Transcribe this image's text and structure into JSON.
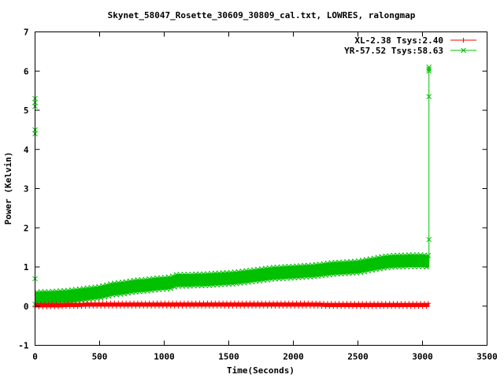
{
  "chart_data": {
    "type": "line",
    "title": "Skynet_58047_Rosette_30609_30809_cal.txt, LOWRES, ralongmap",
    "xlabel": "Time(Seconds)",
    "ylabel": "Power (Kelvin)",
    "xlim": [
      0,
      3500
    ],
    "ylim": [
      -1,
      7
    ],
    "xticks": [
      "0",
      "500",
      "1000",
      "1500",
      "2000",
      "2500",
      "3000",
      "3500"
    ],
    "yticks": [
      "-1",
      "0",
      "1",
      "2",
      "3",
      "4",
      "5",
      "6",
      "7"
    ],
    "legend_position": "top-right",
    "x": [
      0,
      50,
      100,
      150,
      200,
      250,
      300,
      350,
      400,
      450,
      500,
      550,
      600,
      650,
      700,
      750,
      800,
      850,
      900,
      950,
      1000,
      1050,
      1100,
      1150,
      1200,
      1250,
      1300,
      1350,
      1400,
      1450,
      1500,
      1550,
      1600,
      1650,
      1700,
      1750,
      1800,
      1850,
      1900,
      1950,
      2000,
      2050,
      2100,
      2150,
      2200,
      2250,
      2300,
      2350,
      2400,
      2450,
      2500,
      2550,
      2600,
      2650,
      2700,
      2750,
      2800,
      2850,
      2900,
      2950,
      3000,
      3050
    ],
    "series": [
      {
        "name": "XL-2.38 Tsys:2.40",
        "color": "#ff0000",
        "marker": "plus",
        "values": [
          0.02,
          0.02,
          0.02,
          0.02,
          0.02,
          0.03,
          0.03,
          0.03,
          0.04,
          0.04,
          0.04,
          0.04,
          0.04,
          0.04,
          0.04,
          0.04,
          0.04,
          0.04,
          0.04,
          0.04,
          0.04,
          0.04,
          0.04,
          0.04,
          0.04,
          0.04,
          0.04,
          0.04,
          0.04,
          0.04,
          0.04,
          0.04,
          0.04,
          0.04,
          0.04,
          0.04,
          0.04,
          0.04,
          0.04,
          0.04,
          0.04,
          0.04,
          0.04,
          0.04,
          0.04,
          0.03,
          0.03,
          0.03,
          0.03,
          0.03,
          0.03,
          0.03,
          0.03,
          0.03,
          0.03,
          0.03,
          0.03,
          0.03,
          0.03,
          0.03,
          0.03,
          0.03
        ],
        "band_halfwidth": 0.04,
        "spikes": []
      },
      {
        "name": "YR-57.52 Tsys:58.63",
        "color": "#00c000",
        "marker": "cross",
        "values": [
          0.2,
          0.22,
          0.22,
          0.23,
          0.24,
          0.25,
          0.27,
          0.29,
          0.31,
          0.33,
          0.35,
          0.39,
          0.43,
          0.45,
          0.47,
          0.5,
          0.52,
          0.53,
          0.55,
          0.57,
          0.58,
          0.6,
          0.66,
          0.66,
          0.66,
          0.67,
          0.67,
          0.68,
          0.69,
          0.7,
          0.71,
          0.72,
          0.74,
          0.76,
          0.78,
          0.8,
          0.82,
          0.84,
          0.85,
          0.86,
          0.87,
          0.88,
          0.89,
          0.9,
          0.92,
          0.94,
          0.96,
          0.97,
          0.98,
          0.99,
          1.0,
          1.03,
          1.06,
          1.09,
          1.12,
          1.14,
          1.15,
          1.15,
          1.16,
          1.16,
          1.16,
          1.14
        ],
        "band_halfwidth": 0.15,
        "spikes": [
          [
            0,
            5.3
          ],
          [
            0,
            5.2
          ],
          [
            0,
            5.1
          ],
          [
            0,
            4.5
          ],
          [
            0,
            4.4
          ],
          [
            0,
            0.7
          ],
          [
            3050,
            6.1
          ],
          [
            3050,
            6.05
          ],
          [
            3050,
            6.0
          ],
          [
            3050,
            5.35
          ],
          [
            3050,
            1.7
          ]
        ]
      }
    ]
  }
}
